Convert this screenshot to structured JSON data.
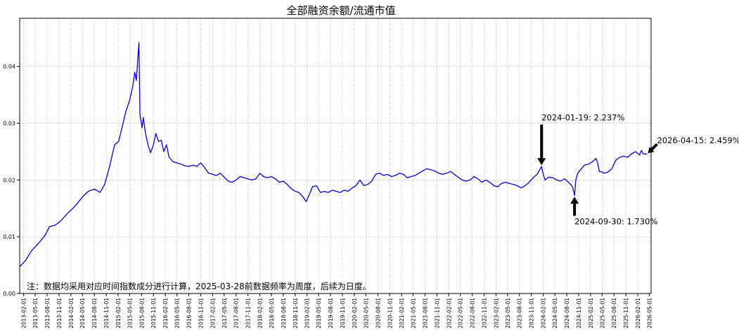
{
  "chart_data": {
    "type": "line",
    "title": "全部融资余额/流通市值",
    "xlabel": "",
    "ylabel": "",
    "ylim": [
      0,
      0.0485
    ],
    "yticks": [
      0.0,
      0.01,
      0.02,
      0.03,
      0.04
    ],
    "ytick_labels": [
      "0.00",
      "0.01",
      "0.02",
      "0.03",
      "0.04"
    ],
    "grid": true,
    "xlim": [
      "2013-01-01",
      "2026-05-15"
    ],
    "xtick_labels": [
      "2013-02-01",
      "2013-05-01",
      "2013-08-01",
      "2013-11-01",
      "2014-02-01",
      "2014-05-01",
      "2014-08-01",
      "2014-11-01",
      "2015-02-01",
      "2015-05-01",
      "2015-08-01",
      "2015-11-01",
      "2016-02-01",
      "2016-05-01",
      "2016-08-01",
      "2016-11-01",
      "2017-02-01",
      "2017-05-01",
      "2017-08-01",
      "2017-11-01",
      "2018-02-01",
      "2018-05-01",
      "2018-08-01",
      "2018-11-01",
      "2019-02-01",
      "2019-05-01",
      "2019-08-01",
      "2019-11-01",
      "2020-02-01",
      "2020-05-01",
      "2020-08-01",
      "2020-11-01",
      "2021-02-01",
      "2021-05-01",
      "2021-08-01",
      "2021-11-01",
      "2022-02-01",
      "2022-05-01",
      "2022-08-01",
      "2022-11-01",
      "2023-02-01",
      "2023-05-01",
      "2023-08-01",
      "2023-11-01",
      "2024-02-01",
      "2024-05-01",
      "2024-08-01",
      "2024-11-01",
      "2025-02-01",
      "2025-05-01",
      "2025-08-01",
      "2025-11-01",
      "2026-02-01",
      "2026-05-01"
    ],
    "series": [
      {
        "color": "#0000cc",
        "points": [
          [
            "2013-01-04",
            0.0048
          ],
          [
            "2013-02-15",
            0.0058
          ],
          [
            "2013-04-01",
            0.0075
          ],
          [
            "2013-06-01",
            0.009
          ],
          [
            "2013-07-15",
            0.0102
          ],
          [
            "2013-08-20",
            0.0118
          ],
          [
            "2013-10-01",
            0.012
          ],
          [
            "2013-11-15",
            0.0128
          ],
          [
            "2014-01-01",
            0.014
          ],
          [
            "2014-02-15",
            0.015
          ],
          [
            "2014-03-20",
            0.0158
          ],
          [
            "2014-05-01",
            0.017
          ],
          [
            "2014-06-15",
            0.018
          ],
          [
            "2014-08-01",
            0.0184
          ],
          [
            "2014-09-15",
            0.0178
          ],
          [
            "2014-10-20",
            0.0192
          ],
          [
            "2014-11-25",
            0.0222
          ],
          [
            "2015-01-05",
            0.0262
          ],
          [
            "2015-02-05",
            0.0268
          ],
          [
            "2015-03-01",
            0.029
          ],
          [
            "2015-04-01",
            0.032
          ],
          [
            "2015-05-01",
            0.034
          ],
          [
            "2015-05-25",
            0.0365
          ],
          [
            "2015-06-10",
            0.039
          ],
          [
            "2015-06-22",
            0.0375
          ],
          [
            "2015-07-05",
            0.042
          ],
          [
            "2015-07-12",
            0.0442
          ],
          [
            "2015-07-20",
            0.0315
          ],
          [
            "2015-08-05",
            0.0292
          ],
          [
            "2015-08-15",
            0.031
          ],
          [
            "2015-09-01",
            0.0282
          ],
          [
            "2015-09-20",
            0.0262
          ],
          [
            "2015-10-10",
            0.0248
          ],
          [
            "2015-11-01",
            0.0262
          ],
          [
            "2015-11-20",
            0.0282
          ],
          [
            "2015-12-10",
            0.0268
          ],
          [
            "2016-01-01",
            0.027
          ],
          [
            "2016-01-20",
            0.025
          ],
          [
            "2016-02-10",
            0.0262
          ],
          [
            "2016-03-01",
            0.024
          ],
          [
            "2016-04-01",
            0.0232
          ],
          [
            "2016-05-01",
            0.023
          ],
          [
            "2016-06-01",
            0.0228
          ],
          [
            "2016-07-01",
            0.0225
          ],
          [
            "2016-08-01",
            0.0224
          ],
          [
            "2016-09-01",
            0.0226
          ],
          [
            "2016-10-01",
            0.0224
          ],
          [
            "2016-11-01",
            0.023
          ],
          [
            "2016-12-01",
            0.0222
          ],
          [
            "2017-01-01",
            0.0212
          ],
          [
            "2017-02-01",
            0.021
          ],
          [
            "2017-03-01",
            0.0208
          ],
          [
            "2017-04-01",
            0.0212
          ],
          [
            "2017-05-01",
            0.0205
          ],
          [
            "2017-06-01",
            0.0198
          ],
          [
            "2017-07-01",
            0.0196
          ],
          [
            "2017-08-01",
            0.02
          ],
          [
            "2017-09-01",
            0.0206
          ],
          [
            "2017-10-01",
            0.0204
          ],
          [
            "2017-11-01",
            0.0202
          ],
          [
            "2017-12-01",
            0.02
          ],
          [
            "2018-01-01",
            0.0202
          ],
          [
            "2018-02-01",
            0.0212
          ],
          [
            "2018-03-01",
            0.0206
          ],
          [
            "2018-04-01",
            0.0204
          ],
          [
            "2018-05-01",
            0.0206
          ],
          [
            "2018-06-01",
            0.0202
          ],
          [
            "2018-07-01",
            0.0196
          ],
          [
            "2018-08-01",
            0.0198
          ],
          [
            "2018-09-01",
            0.0192
          ],
          [
            "2018-10-01",
            0.0185
          ],
          [
            "2018-11-01",
            0.018
          ],
          [
            "2018-12-01",
            0.0178
          ],
          [
            "2019-01-01",
            0.017
          ],
          [
            "2019-01-25",
            0.0162
          ],
          [
            "2019-02-20",
            0.0175
          ],
          [
            "2019-03-15",
            0.0188
          ],
          [
            "2019-04-15",
            0.019
          ],
          [
            "2019-05-15",
            0.0178
          ],
          [
            "2019-06-15",
            0.018
          ],
          [
            "2019-07-15",
            0.0178
          ],
          [
            "2019-08-15",
            0.0182
          ],
          [
            "2019-09-15",
            0.018
          ],
          [
            "2019-10-15",
            0.0178
          ],
          [
            "2019-11-15",
            0.0182
          ],
          [
            "2019-12-15",
            0.018
          ],
          [
            "2020-01-15",
            0.0186
          ],
          [
            "2020-02-15",
            0.019
          ],
          [
            "2020-03-15",
            0.02
          ],
          [
            "2020-04-15",
            0.019
          ],
          [
            "2020-05-15",
            0.0192
          ],
          [
            "2020-06-15",
            0.0198
          ],
          [
            "2020-07-15",
            0.021
          ],
          [
            "2020-08-15",
            0.0212
          ],
          [
            "2020-09-15",
            0.0208
          ],
          [
            "2020-10-15",
            0.021
          ],
          [
            "2020-11-15",
            0.0206
          ],
          [
            "2020-12-15",
            0.0208
          ],
          [
            "2021-01-15",
            0.0212
          ],
          [
            "2021-02-15",
            0.021
          ],
          [
            "2021-03-15",
            0.0204
          ],
          [
            "2021-04-15",
            0.0206
          ],
          [
            "2021-05-15",
            0.0208
          ],
          [
            "2021-06-15",
            0.0212
          ],
          [
            "2021-07-15",
            0.0216
          ],
          [
            "2021-08-15",
            0.022
          ],
          [
            "2021-09-15",
            0.0218
          ],
          [
            "2021-10-15",
            0.0216
          ],
          [
            "2021-11-15",
            0.0212
          ],
          [
            "2021-12-15",
            0.021
          ],
          [
            "2022-01-15",
            0.0212
          ],
          [
            "2022-02-15",
            0.0215
          ],
          [
            "2022-03-15",
            0.021
          ],
          [
            "2022-04-15",
            0.0205
          ],
          [
            "2022-05-15",
            0.02
          ],
          [
            "2022-06-15",
            0.0198
          ],
          [
            "2022-07-15",
            0.02
          ],
          [
            "2022-08-15",
            0.0206
          ],
          [
            "2022-09-15",
            0.0202
          ],
          [
            "2022-10-15",
            0.0196
          ],
          [
            "2022-11-15",
            0.02
          ],
          [
            "2022-12-15",
            0.0196
          ],
          [
            "2023-01-15",
            0.019
          ],
          [
            "2023-02-15",
            0.0188
          ],
          [
            "2023-03-15",
            0.0194
          ],
          [
            "2023-04-15",
            0.0196
          ],
          [
            "2023-05-15",
            0.0194
          ],
          [
            "2023-06-15",
            0.0192
          ],
          [
            "2023-07-15",
            0.019
          ],
          [
            "2023-08-15",
            0.0186
          ],
          [
            "2023-09-15",
            0.019
          ],
          [
            "2023-10-15",
            0.0196
          ],
          [
            "2023-11-15",
            0.0204
          ],
          [
            "2023-12-15",
            0.021
          ],
          [
            "2024-01-19",
            0.02237
          ],
          [
            "2024-02-01",
            0.021
          ],
          [
            "2024-02-15",
            0.02
          ],
          [
            "2024-03-15",
            0.0205
          ],
          [
            "2024-04-15",
            0.0204
          ],
          [
            "2024-05-15",
            0.02
          ],
          [
            "2024-06-15",
            0.0198
          ],
          [
            "2024-07-15",
            0.0202
          ],
          [
            "2024-08-15",
            0.0196
          ],
          [
            "2024-09-15",
            0.0188
          ],
          [
            "2024-09-30",
            0.0173
          ],
          [
            "2024-10-10",
            0.02
          ],
          [
            "2024-10-25",
            0.0212
          ],
          [
            "2024-11-15",
            0.0218
          ],
          [
            "2024-12-15",
            0.0226
          ],
          [
            "2025-01-15",
            0.0228
          ],
          [
            "2025-02-15",
            0.0232
          ],
          [
            "2025-03-15",
            0.0238
          ],
          [
            "2025-03-28",
            0.023
          ],
          [
            "2025-04-10",
            0.0215
          ],
          [
            "2025-05-01",
            0.0214
          ],
          [
            "2025-05-15",
            0.0212
          ],
          [
            "2025-06-15",
            0.0214
          ],
          [
            "2025-07-15",
            0.022
          ],
          [
            "2025-08-01",
            0.0228
          ],
          [
            "2025-08-15",
            0.0235
          ],
          [
            "2025-09-15",
            0.024
          ],
          [
            "2025-10-15",
            0.0242
          ],
          [
            "2025-11-15",
            0.024
          ],
          [
            "2025-12-15",
            0.0246
          ],
          [
            "2026-01-15",
            0.025
          ],
          [
            "2026-02-15",
            0.0244
          ],
          [
            "2026-03-01",
            0.0252
          ],
          [
            "2026-03-15",
            0.0246
          ],
          [
            "2026-04-15",
            0.02459
          ]
        ]
      }
    ],
    "annotations": [
      {
        "text": "2024-01-19: 2.237%",
        "x": "2024-01-19",
        "y": 0.02237,
        "arrow": "down",
        "text_y": 0.0305
      },
      {
        "text": "2024-09-30: 1.730%",
        "x": "2024-09-30",
        "y": 0.0173,
        "arrow": "up",
        "text_y": 0.0122
      },
      {
        "text": "2026-04-15: 2.459%",
        "x": "2026-04-15",
        "y": 0.02459,
        "arrow": "diag",
        "text_y": 0.0265
      }
    ],
    "note": "注：数据均采用对应时间指数成分进行计算，2025-03-28前数据频率为周度，后续为日度。"
  }
}
